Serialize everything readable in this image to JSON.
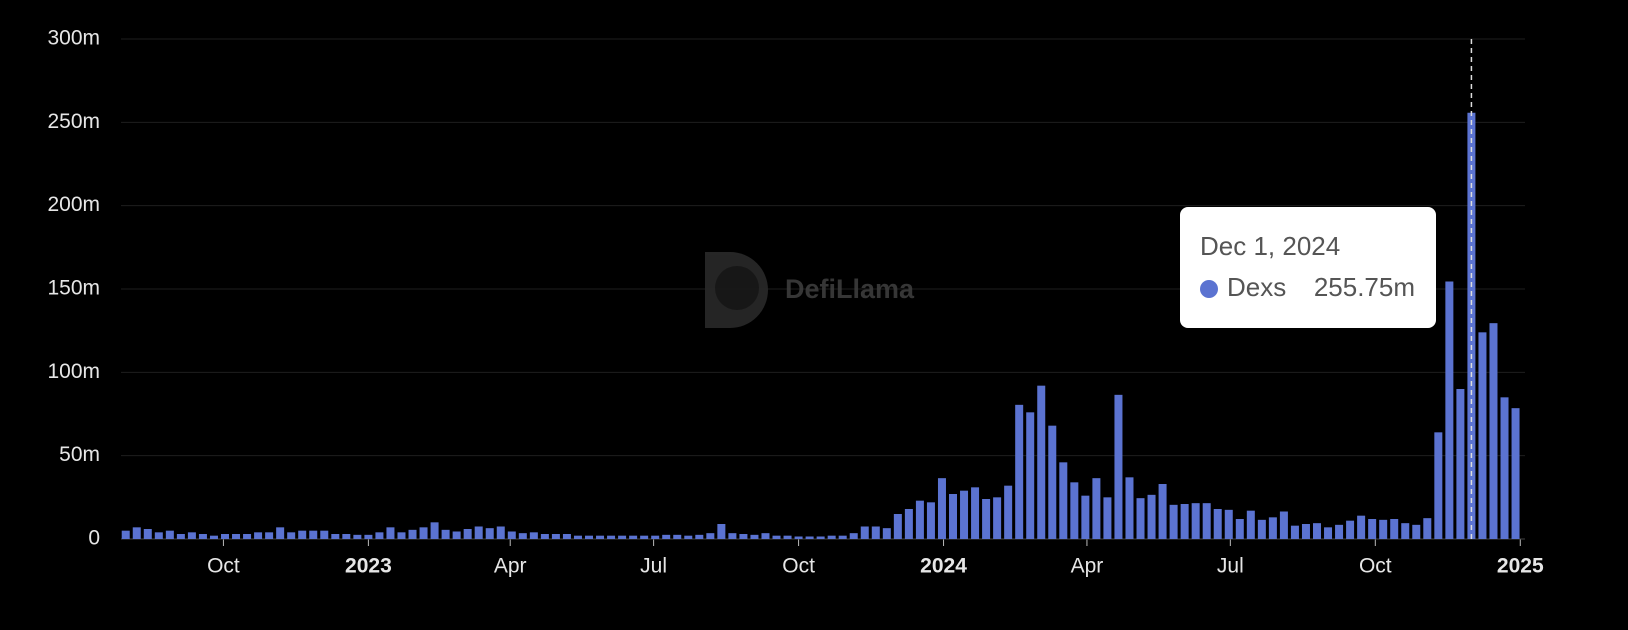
{
  "chart_data": {
    "type": "bar",
    "watermark": "DefiLlama",
    "x": [
      "2022-07-31",
      "2022-08-07",
      "2022-08-14",
      "2022-08-21",
      "2022-08-28",
      "2022-09-04",
      "2022-09-11",
      "2022-09-18",
      "2022-09-25",
      "2022-10-02",
      "2022-10-09",
      "2022-10-16",
      "2022-10-23",
      "2022-10-30",
      "2022-11-06",
      "2022-11-13",
      "2022-11-20",
      "2022-11-27",
      "2022-12-04",
      "2022-12-11",
      "2022-12-18",
      "2022-12-25",
      "2023-01-01",
      "2023-01-08",
      "2023-01-15",
      "2023-01-22",
      "2023-01-29",
      "2023-02-05",
      "2023-02-12",
      "2023-02-19",
      "2023-02-26",
      "2023-03-05",
      "2023-03-12",
      "2023-03-19",
      "2023-03-26",
      "2023-04-02",
      "2023-04-09",
      "2023-04-16",
      "2023-04-23",
      "2023-04-30",
      "2023-05-07",
      "2023-05-14",
      "2023-05-21",
      "2023-05-28",
      "2023-06-04",
      "2023-06-11",
      "2023-06-18",
      "2023-06-25",
      "2023-07-02",
      "2023-07-09",
      "2023-07-16",
      "2023-07-23",
      "2023-07-30",
      "2023-08-06",
      "2023-08-13",
      "2023-08-20",
      "2023-08-27",
      "2023-09-03",
      "2023-09-10",
      "2023-09-17",
      "2023-09-24",
      "2023-10-01",
      "2023-10-08",
      "2023-10-15",
      "2023-10-22",
      "2023-10-29",
      "2023-11-05",
      "2023-11-12",
      "2023-11-19",
      "2023-11-26",
      "2023-12-03",
      "2023-12-10",
      "2023-12-17",
      "2023-12-24",
      "2023-12-31",
      "2024-01-07",
      "2024-01-14",
      "2024-01-21",
      "2024-01-28",
      "2024-02-04",
      "2024-02-11",
      "2024-02-18",
      "2024-02-25",
      "2024-03-03",
      "2024-03-10",
      "2024-03-17",
      "2024-03-24",
      "2024-03-31",
      "2024-04-07",
      "2024-04-14",
      "2024-04-21",
      "2024-04-28",
      "2024-05-05",
      "2024-05-12",
      "2024-05-19",
      "2024-05-26",
      "2024-06-02",
      "2024-06-09",
      "2024-06-16",
      "2024-06-23",
      "2024-06-30",
      "2024-07-07",
      "2024-07-14",
      "2024-07-21",
      "2024-07-28",
      "2024-08-04",
      "2024-08-11",
      "2024-08-18",
      "2024-08-25",
      "2024-09-01",
      "2024-09-08",
      "2024-09-15",
      "2024-09-22",
      "2024-09-29",
      "2024-10-06",
      "2024-10-13",
      "2024-10-20",
      "2024-10-27",
      "2024-11-03",
      "2024-11-10",
      "2024-11-17",
      "2024-11-24",
      "2024-12-01",
      "2024-12-08",
      "2024-12-15",
      "2024-12-22",
      "2024-12-29"
    ],
    "series": [
      {
        "name": "Dexs",
        "color": "#5b73d1",
        "values": [
          5,
          7,
          6,
          4,
          5,
          3,
          4,
          3,
          2,
          3,
          3,
          3,
          4,
          4,
          7,
          4,
          5,
          5,
          5,
          3,
          3,
          2.5,
          2.5,
          4,
          7,
          4,
          5.5,
          7,
          10,
          5.5,
          4.5,
          6,
          7.5,
          6.5,
          7.5,
          4.5,
          3.5,
          4,
          3,
          3,
          3,
          2,
          2,
          2,
          2,
          2,
          2,
          2,
          2,
          2.5,
          2.5,
          2,
          2.5,
          3.5,
          9,
          3.5,
          3,
          2.5,
          3.5,
          2,
          2,
          1.5,
          1.5,
          1.5,
          2,
          2,
          3.5,
          7.5,
          7.5,
          6.5,
          15,
          18,
          23,
          22,
          36.5,
          27,
          29,
          31,
          24,
          25,
          32,
          80.5,
          76,
          92,
          68,
          46,
          34,
          26,
          36.5,
          25,
          86.5,
          37,
          24.5,
          26.5,
          33,
          20.5,
          21,
          21.5,
          21.5,
          18,
          17.5,
          12,
          17,
          11.5,
          13,
          16.5,
          8,
          9,
          9.5,
          7,
          8.5,
          11,
          14,
          12,
          11.5,
          12,
          9.5,
          8.5,
          12.5,
          64,
          154.5,
          90,
          255.75,
          124,
          129.5,
          85,
          78.5
        ]
      }
    ],
    "xlim": [
      "2022-07-28",
      "2025-01-04"
    ],
    "xticks": [
      {
        "value": "2022-10-01",
        "label": "Oct"
      },
      {
        "value": "2023-01-01",
        "label": "2023"
      },
      {
        "value": "2023-04-01",
        "label": "Apr"
      },
      {
        "value": "2023-07-01",
        "label": "Jul"
      },
      {
        "value": "2023-10-01",
        "label": "Oct"
      },
      {
        "value": "2024-01-01",
        "label": "2024"
      },
      {
        "value": "2024-04-01",
        "label": "Apr"
      },
      {
        "value": "2024-07-01",
        "label": "Jul"
      },
      {
        "value": "2024-10-01",
        "label": "Oct"
      },
      {
        "value": "2025-01-01",
        "label": "2025"
      }
    ],
    "ylim": [
      0,
      300
    ],
    "yticks": [
      0,
      {
        "value": 50,
        "label": "50m"
      },
      {
        "value": 100,
        "label": "100m"
      },
      {
        "value": 150,
        "label": "150m"
      },
      {
        "value": 200,
        "label": "200m"
      },
      {
        "value": 250,
        "label": "250m"
      },
      {
        "value": 300,
        "label": "300m"
      }
    ],
    "grid": true,
    "tooltip": {
      "title": "Dec 1, 2024",
      "series": "Dexs",
      "value": "255.75m"
    }
  }
}
